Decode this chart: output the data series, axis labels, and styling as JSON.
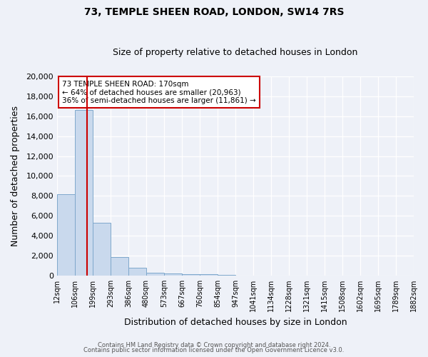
{
  "title": "73, TEMPLE SHEEN ROAD, LONDON, SW14 7RS",
  "subtitle": "Size of property relative to detached houses in London",
  "xlabel": "Distribution of detached houses by size in London",
  "ylabel": "Number of detached properties",
  "bin_labels": [
    "12sqm",
    "106sqm",
    "199sqm",
    "293sqm",
    "386sqm",
    "480sqm",
    "573sqm",
    "667sqm",
    "760sqm",
    "854sqm",
    "947sqm",
    "1041sqm",
    "1134sqm",
    "1228sqm",
    "1321sqm",
    "1415sqm",
    "1508sqm",
    "1602sqm",
    "1695sqm",
    "1789sqm",
    "1882sqm"
  ],
  "bar_heights": [
    8200,
    16600,
    5300,
    1850,
    800,
    300,
    200,
    150,
    100,
    60,
    0,
    0,
    0,
    0,
    0,
    0,
    0,
    0,
    0,
    0
  ],
  "bar_color": "#c9d9ed",
  "bar_edgecolor": "#7fa8cc",
  "vline_color": "#cc0000",
  "ylim": [
    0,
    20000
  ],
  "yticks": [
    0,
    2000,
    4000,
    6000,
    8000,
    10000,
    12000,
    14000,
    16000,
    18000,
    20000
  ],
  "annotation_title": "73 TEMPLE SHEEN ROAD: 170sqm",
  "annotation_line1": "← 64% of detached houses are smaller (20,963)",
  "annotation_line2": "36% of semi-detached houses are larger (11,861) →",
  "annotation_box_edgecolor": "#cc0000",
  "footer1": "Contains HM Land Registry data © Crown copyright and database right 2024.",
  "footer2": "Contains public sector information licensed under the Open Government Licence v3.0.",
  "bg_color": "#eef1f8",
  "plot_bg_color": "#eef1f8",
  "grid_color": "#ffffff",
  "figsize": [
    6.0,
    5.0
  ],
  "dpi": 100
}
